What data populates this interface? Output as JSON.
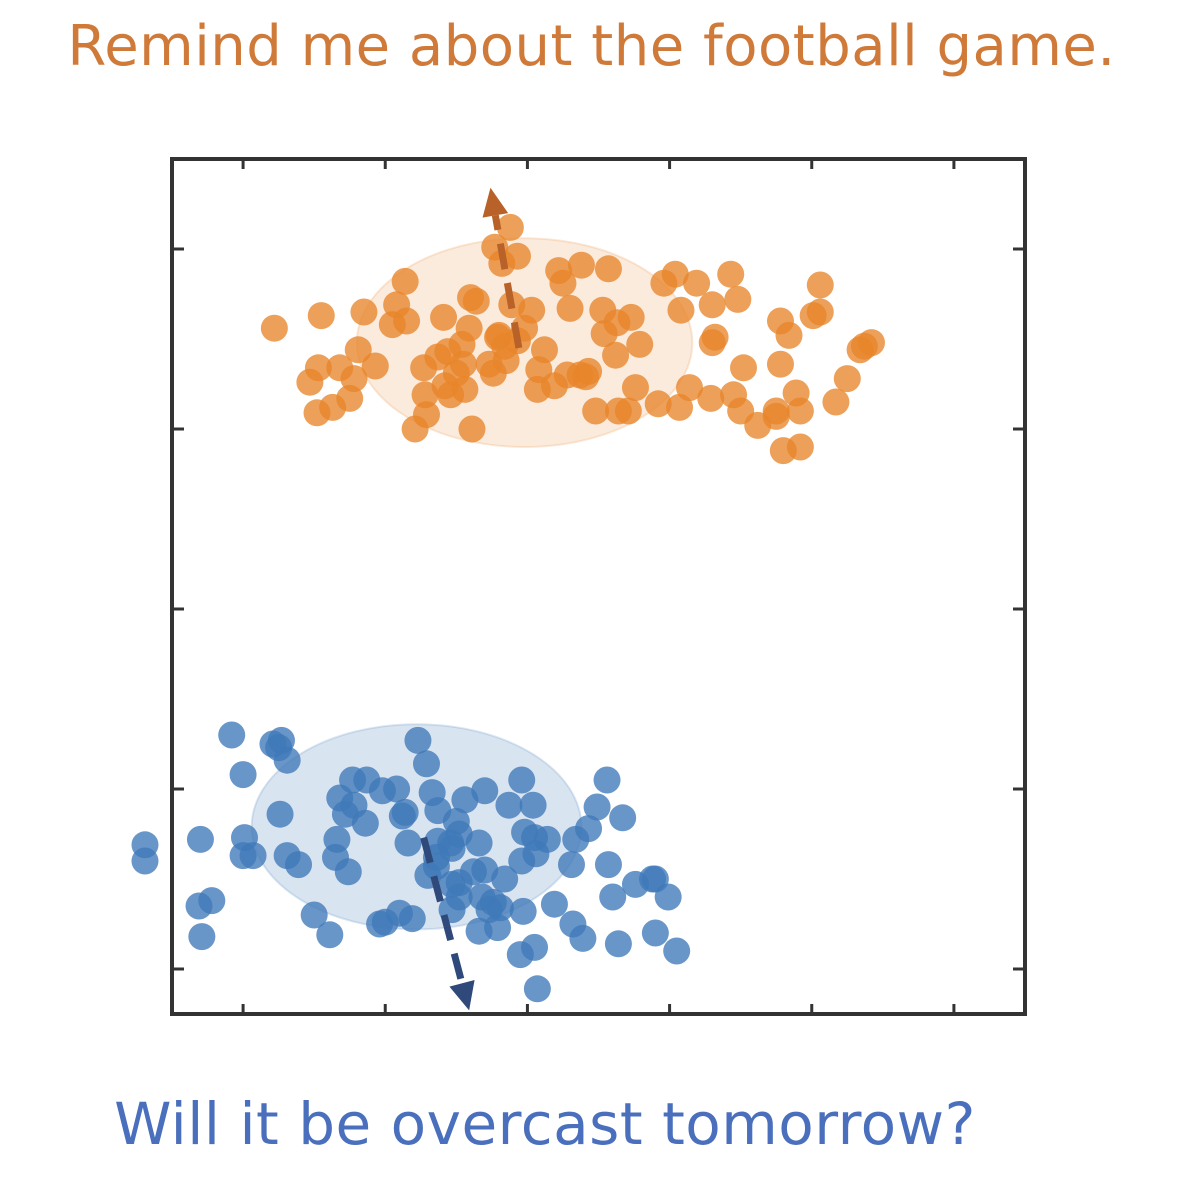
{
  "chart_data": {
    "type": "scatter",
    "title_top": "Remind me about the football game.",
    "title_bottom": "Will it be overcast tomorrow?",
    "xlim": [
      -0.5,
      5.5
    ],
    "ylim": [
      -0.25,
      4.5
    ],
    "grid": false,
    "colors": {
      "orange": "#e8852a",
      "blue": "#3f78b8",
      "orange_arrow": "#b8622a",
      "blue_arrow": "#2f4a7a",
      "frame": "#333333"
    },
    "series": [
      {
        "color_key": "orange",
        "ellipse": {
          "cx": 1.98,
          "cy": 3.48,
          "rx": 1.18,
          "ry": 0.58
        },
        "arrow": {
          "from": [
            1.94,
            3.45
          ],
          "to": [
            1.74,
            4.34
          ]
        },
        "points": [
          [
            1.88,
            4.12
          ],
          [
            1.93,
            3.96
          ],
          [
            1.77,
            4.01
          ],
          [
            1.82,
            3.92
          ],
          [
            2.38,
            3.91
          ],
          [
            2.25,
            3.81
          ],
          [
            2.22,
            3.88
          ],
          [
            2.57,
            3.89
          ],
          [
            2.96,
            3.81
          ],
          [
            3.04,
            3.86
          ],
          [
            3.19,
            3.81
          ],
          [
            3.43,
            3.86
          ],
          [
            1.14,
            3.82
          ],
          [
            1.08,
            3.69
          ],
          [
            0.85,
            3.65
          ],
          [
            0.55,
            3.63
          ],
          [
            0.81,
            3.44
          ],
          [
            0.93,
            3.35
          ],
          [
            1.44,
            3.43
          ],
          [
            1.64,
            3.71
          ],
          [
            1.59,
            3.56
          ],
          [
            1.98,
            3.56
          ],
          [
            1.79,
            3.51
          ],
          [
            1.84,
            3.46
          ],
          [
            1.93,
            3.49
          ],
          [
            2.08,
            3.33
          ],
          [
            2.12,
            3.44
          ],
          [
            2.3,
            3.67
          ],
          [
            2.73,
            3.62
          ],
          [
            2.63,
            3.59
          ],
          [
            2.54,
            3.53
          ],
          [
            2.62,
            3.41
          ],
          [
            2.37,
            3.3
          ],
          [
            2.43,
            3.32
          ],
          [
            3.3,
            3.69
          ],
          [
            3.3,
            3.48
          ],
          [
            3.32,
            3.51
          ],
          [
            3.08,
            3.66
          ],
          [
            3.78,
            3.6
          ],
          [
            3.48,
            3.72
          ],
          [
            3.84,
            3.52
          ],
          [
            4.01,
            3.63
          ],
          [
            4.34,
            3.44
          ],
          [
            4.42,
            3.48
          ],
          [
            4.06,
            3.65
          ],
          [
            4.25,
            3.28
          ],
          [
            1.54,
            3.47
          ],
          [
            1.42,
            3.24
          ],
          [
            1.37,
            3.4
          ],
          [
            1.56,
            3.22
          ],
          [
            2.53,
            3.66
          ],
          [
            2.76,
            3.23
          ],
          [
            3.14,
            3.23
          ],
          [
            4.37,
            3.46
          ],
          [
            2.79,
            3.47
          ],
          [
            2.41,
            3.29
          ],
          [
            2.28,
            3.3
          ],
          [
            2.19,
            3.24
          ],
          [
            2.03,
            3.66
          ],
          [
            1.89,
            3.69
          ],
          [
            1.5,
            3.31
          ],
          [
            1.27,
            3.34
          ],
          [
            1.21,
            3.0
          ],
          [
            1.29,
            3.08
          ],
          [
            1.28,
            3.19
          ],
          [
            1.46,
            3.19
          ],
          [
            1.61,
            3.0
          ],
          [
            1.8,
            3.52
          ],
          [
            2.64,
            3.1
          ],
          [
            2.48,
            3.1
          ],
          [
            2.71,
            3.1
          ],
          [
            2.92,
            3.14
          ],
          [
            3.07,
            3.12
          ],
          [
            3.29,
            3.17
          ],
          [
            3.45,
            3.19
          ],
          [
            3.5,
            3.1
          ],
          [
            3.75,
            3.1
          ],
          [
            3.89,
            3.2
          ],
          [
            3.92,
            2.9
          ],
          [
            3.8,
            2.88
          ],
          [
            2.07,
            3.22
          ],
          [
            1.6,
            3.73
          ],
          [
            1.41,
            3.62
          ],
          [
            1.55,
            3.36
          ],
          [
            1.73,
            3.36
          ],
          [
            1.85,
            3.38
          ],
          [
            1.76,
            3.31
          ],
          [
            0.22,
            3.56
          ],
          [
            0.68,
            3.34
          ],
          [
            0.53,
            3.34
          ],
          [
            0.47,
            3.26
          ],
          [
            0.78,
            3.28
          ],
          [
            0.75,
            3.17
          ],
          [
            0.63,
            3.12
          ],
          [
            0.52,
            3.09
          ],
          [
            4.06,
            3.8
          ],
          [
            3.78,
            3.36
          ],
          [
            3.92,
            3.1
          ],
          [
            1.05,
            3.58
          ],
          [
            1.15,
            3.6
          ],
          [
            3.52,
            3.34
          ],
          [
            4.17,
            3.15
          ],
          [
            3.62,
            3.02
          ],
          [
            3.75,
            3.07
          ]
        ]
      },
      {
        "color_key": "blue",
        "ellipse": {
          "cx": 1.22,
          "cy": 0.79,
          "rx": 1.16,
          "ry": 0.57
        },
        "arrow": {
          "from": [
            1.27,
            0.73
          ],
          "to": [
            1.59,
            -0.23
          ]
        },
        "points": [
          [
            -0.08,
            1.3
          ],
          [
            0.21,
            1.25
          ],
          [
            0.27,
            1.27
          ],
          [
            0.31,
            1.16
          ],
          [
            1.23,
            1.27
          ],
          [
            1.29,
            1.14
          ],
          [
            0.0,
            1.08
          ],
          [
            0.25,
            1.23
          ],
          [
            0.77,
            1.05
          ],
          [
            0.87,
            1.05
          ],
          [
            0.98,
            0.99
          ],
          [
            1.08,
            1.0
          ],
          [
            1.33,
            0.98
          ],
          [
            1.56,
            0.94
          ],
          [
            1.7,
            0.99
          ],
          [
            1.96,
            1.05
          ],
          [
            1.87,
            0.91
          ],
          [
            2.04,
            0.91
          ],
          [
            2.56,
            1.05
          ],
          [
            2.49,
            0.9
          ],
          [
            2.67,
            0.84
          ],
          [
            0.26,
            0.86
          ],
          [
            0.72,
            0.86
          ],
          [
            0.68,
            0.95
          ],
          [
            0.78,
            0.91
          ],
          [
            1.14,
            0.87
          ],
          [
            1.37,
            0.88
          ],
          [
            1.5,
            0.82
          ],
          [
            1.52,
            0.75
          ],
          [
            1.98,
            0.76
          ],
          [
            2.05,
            0.73
          ],
          [
            2.14,
            0.72
          ],
          [
            -0.69,
            0.69
          ],
          [
            -0.69,
            0.6
          ],
          [
            -0.3,
            0.72
          ],
          [
            0.01,
            0.73
          ],
          [
            0.07,
            0.63
          ],
          [
            0.31,
            0.63
          ],
          [
            0.65,
            0.62
          ],
          [
            0.66,
            0.72
          ],
          [
            0.86,
            0.81
          ],
          [
            1.12,
            0.85
          ],
          [
            1.37,
            0.71
          ],
          [
            1.47,
            0.67
          ],
          [
            1.66,
            0.7
          ],
          [
            2.06,
            0.64
          ],
          [
            2.31,
            0.58
          ],
          [
            1.7,
            0.55
          ],
          [
            1.62,
            0.54
          ],
          [
            1.36,
            0.62
          ],
          [
            1.16,
            0.7
          ],
          [
            1.46,
            0.7
          ],
          [
            1.3,
            0.52
          ],
          [
            1.36,
            0.57
          ],
          [
            1.52,
            0.48
          ],
          [
            1.84,
            0.5
          ],
          [
            1.96,
            0.6
          ],
          [
            2.34,
            0.72
          ],
          [
            2.43,
            0.78
          ],
          [
            2.57,
            0.58
          ],
          [
            2.76,
            0.47
          ],
          [
            2.9,
            0.5
          ],
          [
            2.6,
            0.4
          ],
          [
            1.97,
            0.32
          ],
          [
            1.73,
            0.33
          ],
          [
            1.76,
            0.37
          ],
          [
            1.81,
            0.34
          ],
          [
            1.68,
            0.4
          ],
          [
            1.52,
            0.4
          ],
          [
            1.47,
            0.47
          ],
          [
            0.74,
            0.54
          ],
          [
            0.39,
            0.58
          ],
          [
            0.0,
            0.63
          ],
          [
            -0.31,
            0.35
          ],
          [
            -0.22,
            0.38
          ],
          [
            1.0,
            0.26
          ],
          [
            1.1,
            0.31
          ],
          [
            1.47,
            0.33
          ],
          [
            1.19,
            0.28
          ],
          [
            2.99,
            0.4
          ],
          [
            2.88,
            0.5
          ],
          [
            2.19,
            0.36
          ],
          [
            2.32,
            0.25
          ],
          [
            2.39,
            0.17
          ],
          [
            2.05,
            0.12
          ],
          [
            2.9,
            0.2
          ],
          [
            2.64,
            0.14
          ],
          [
            2.07,
            -0.11
          ],
          [
            1.66,
            0.21
          ],
          [
            1.79,
            0.23
          ],
          [
            0.96,
            0.25
          ],
          [
            1.95,
            0.08
          ],
          [
            3.05,
            0.1
          ],
          [
            -0.29,
            0.18
          ],
          [
            0.61,
            0.19
          ],
          [
            0.5,
            0.3
          ]
        ]
      }
    ]
  }
}
